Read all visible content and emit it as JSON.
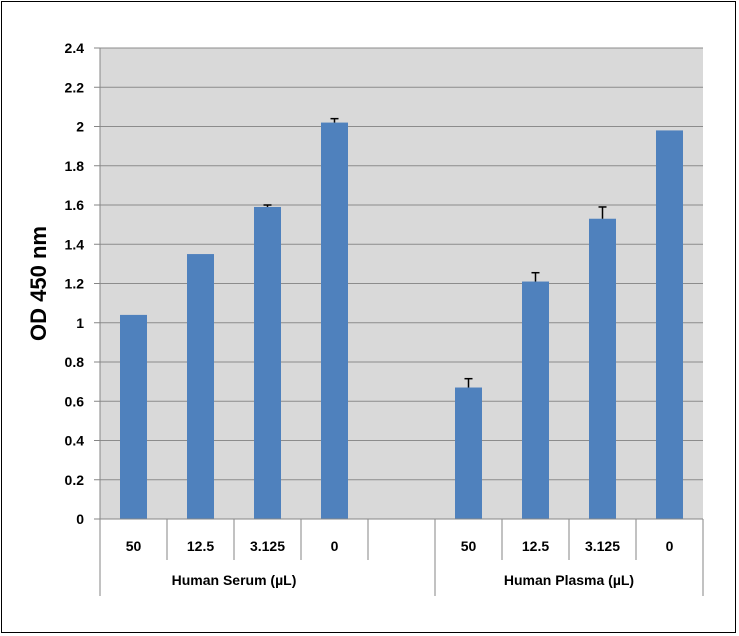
{
  "chart_data": {
    "type": "bar",
    "title": "",
    "ylabel": "OD 450 nm",
    "xlabel": "",
    "ylim": [
      0,
      2.4
    ],
    "y_ticks": [
      "0",
      "0.2",
      "0.4",
      "0.6",
      "0.8",
      "1",
      "1.2",
      "1.4",
      "1.6",
      "1.8",
      "2",
      "2.2",
      "2.4"
    ],
    "grid": true,
    "legend": "none",
    "groups": [
      {
        "label": "Human Serum (µL)",
        "categories": [
          "50",
          "12.5",
          "3.125",
          "0"
        ],
        "values": [
          1.04,
          1.35,
          1.59,
          2.02
        ],
        "errors": [
          0,
          0,
          0.01,
          0.02
        ]
      },
      {
        "label": "Human Plasma (µL)",
        "categories": [
          "50",
          "12.5",
          "3.125",
          "0"
        ],
        "values": [
          0.67,
          1.21,
          1.53,
          1.98
        ],
        "errors": [
          0.045,
          0.045,
          0.06,
          0
        ]
      }
    ],
    "colors": {
      "bar": "#4f81bd",
      "plot_background": "#d9d9d9",
      "grid": "#8c8c8c",
      "axis": "#868686"
    }
  }
}
